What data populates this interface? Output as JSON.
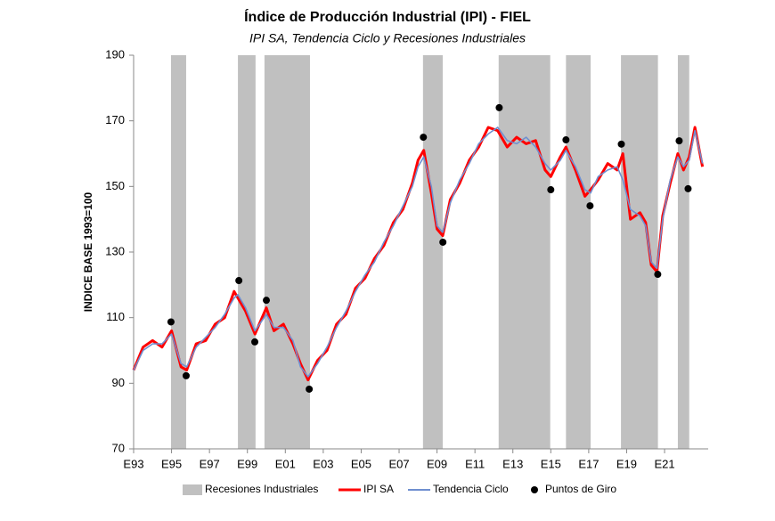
{
  "chart_data": {
    "type": "line",
    "title": "Índice de Producción Industrial (IPI) - FIEL",
    "subtitle": "IPI SA, Tendencia Ciclo y Recesiones Industriales",
    "y_label": "INDICE BASE 1993=100",
    "xlim": [
      1993,
      2023.3
    ],
    "xticks": [
      {
        "value": 1993,
        "label": "E93"
      },
      {
        "value": 1995,
        "label": "E95"
      },
      {
        "value": 1997,
        "label": "E97"
      },
      {
        "value": 1999,
        "label": "E99"
      },
      {
        "value": 2001,
        "label": "E01"
      },
      {
        "value": 2003,
        "label": "E03"
      },
      {
        "value": 2005,
        "label": "E05"
      },
      {
        "value": 2007,
        "label": "E07"
      },
      {
        "value": 2009,
        "label": "E09"
      },
      {
        "value": 2011,
        "label": "E11"
      },
      {
        "value": 2013,
        "label": "E13"
      },
      {
        "value": 2015,
        "label": "E15"
      },
      {
        "value": 2017,
        "label": "E17"
      },
      {
        "value": 2019,
        "label": "E19"
      },
      {
        "value": 2021,
        "label": "E21"
      }
    ],
    "ylim": [
      70,
      190
    ],
    "yticks": [
      70,
      90,
      110,
      130,
      150,
      170,
      190
    ],
    "recessions": {
      "name": "Recesiones Industriales",
      "color": "#c0c0c0",
      "periods": [
        [
          1994.97,
          1995.77
        ],
        [
          1998.5,
          1999.43
        ],
        [
          1999.9,
          2002.3
        ],
        [
          2008.26,
          2009.3
        ],
        [
          2012.25,
          2014.97
        ],
        [
          2015.8,
          2017.1
        ],
        [
          2018.7,
          2020.65
        ],
        [
          2021.7,
          2022.3
        ]
      ]
    },
    "x": [
      1993.0,
      1993.5,
      1994.0,
      1994.5,
      1995.0,
      1995.5,
      1995.8,
      1996.3,
      1996.8,
      1997.3,
      1997.8,
      1998.3,
      1998.5,
      1998.9,
      1999.4,
      2000.0,
      2000.4,
      2000.9,
      2001.4,
      2001.8,
      2002.2,
      2002.7,
      2003.2,
      2003.7,
      2004.2,
      2004.7,
      2005.2,
      2005.7,
      2006.2,
      2006.7,
      2007.2,
      2007.7,
      2008.0,
      2008.3,
      2008.7,
      2009.0,
      2009.3,
      2009.7,
      2010.2,
      2010.7,
      2011.2,
      2011.7,
      2012.2,
      2012.7,
      2013.2,
      2013.7,
      2014.2,
      2014.7,
      2015.0,
      2015.5,
      2015.8,
      2016.3,
      2016.8,
      2017.1,
      2017.5,
      2018.0,
      2018.5,
      2018.8,
      2019.2,
      2019.7,
      2020.0,
      2020.3,
      2020.6,
      2020.9,
      2021.3,
      2021.7,
      2022.0,
      2022.3,
      2022.6,
      2023.0
    ],
    "series": [
      {
        "name": "IPI SA",
        "color": "#ff0000",
        "values": [
          94,
          101,
          103,
          101,
          106,
          95,
          94,
          102,
          103,
          108,
          110,
          118,
          116,
          112,
          105,
          113,
          106,
          108,
          102,
          96,
          91,
          97,
          100,
          108,
          111,
          119,
          122,
          128,
          132,
          139,
          143,
          151,
          158,
          161,
          148,
          137,
          135,
          146,
          151,
          158,
          162,
          168,
          167,
          162,
          165,
          163,
          164,
          155,
          153,
          159,
          162,
          155,
          147,
          149,
          152,
          157,
          155,
          160,
          140,
          142,
          139,
          126,
          124,
          141,
          151,
          160,
          155,
          159,
          168,
          156
        ]
      },
      {
        "name": "Tendencia Ciclo",
        "color": "#6f8fd0",
        "values": [
          94,
          100,
          102,
          102,
          105,
          96,
          95,
          101,
          104,
          107,
          111,
          116,
          117,
          113,
          106,
          111,
          107,
          107,
          103,
          95,
          92,
          96,
          101,
          107,
          112,
          118,
          123,
          127,
          133,
          138,
          144,
          150,
          156,
          159,
          150,
          138,
          136,
          145,
          152,
          157,
          163,
          166,
          168,
          164,
          163,
          165,
          162,
          157,
          155,
          158,
          161,
          156,
          149,
          148,
          153,
          155,
          156,
          152,
          143,
          141,
          138,
          127,
          125,
          140,
          152,
          159,
          156,
          158,
          167,
          157
        ]
      }
    ],
    "points": {
      "name": "Puntos de Giro",
      "color": "#000000",
      "x": [
        1994.97,
        1995.77,
        1998.55,
        1999.39,
        2000.0,
        2002.26,
        2008.28,
        2009.31,
        2012.28,
        2015.0,
        2015.8,
        2017.07,
        2018.72,
        2020.64,
        2021.77,
        2022.24
      ],
      "y": [
        108.7,
        92.3,
        121.3,
        102.6,
        115.3,
        88.2,
        165,
        133,
        174,
        149,
        164.2,
        144.1,
        162.9,
        123.2,
        163.9,
        149.3
      ]
    }
  }
}
